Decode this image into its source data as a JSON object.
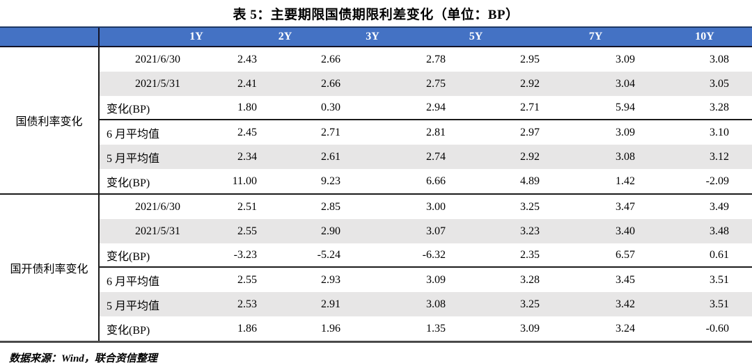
{
  "title": "表 5：主要期限国债期限利差变化（单位：BP）",
  "footer": "数据来源：Wind，联合资信整理",
  "colors": {
    "header_bg": "#4472C4",
    "header_text": "#FFFFFF",
    "stripe_row_bg": "#E7E6E6",
    "top_border": "#1F3864",
    "grid_line": "#1A1A1A",
    "bottom_border": "#4A4A4A"
  },
  "table": {
    "columns": [
      "1Y",
      "2Y",
      "3Y",
      "5Y",
      "7Y",
      "10Y"
    ],
    "groups": [
      {
        "label": "国债利率变化",
        "rows": [
          {
            "label": "2021/6/30",
            "values": [
              "2.43",
              "2.66",
              "2.78",
              "2.95",
              "3.09",
              "3.08"
            ]
          },
          {
            "label": "2021/5/31",
            "values": [
              "2.41",
              "2.66",
              "2.75",
              "2.92",
              "3.04",
              "3.05"
            ]
          },
          {
            "label": "变化(BP)",
            "values": [
              "1.80",
              "0.30",
              "2.94",
              "2.71",
              "5.94",
              "3.28"
            ]
          },
          {
            "label": "6 月平均值",
            "values": [
              "2.45",
              "2.71",
              "2.81",
              "2.97",
              "3.09",
              "3.10"
            ]
          },
          {
            "label": "5 月平均值",
            "values": [
              "2.34",
              "2.61",
              "2.74",
              "2.92",
              "3.08",
              "3.12"
            ]
          },
          {
            "label": "变化(BP)",
            "values": [
              "11.00",
              "9.23",
              "6.66",
              "4.89",
              "1.42",
              "-2.09"
            ]
          }
        ]
      },
      {
        "label": "国开债利率变化",
        "rows": [
          {
            "label": "2021/6/30",
            "values": [
              "2.51",
              "2.85",
              "3.00",
              "3.25",
              "3.47",
              "3.49"
            ]
          },
          {
            "label": "2021/5/31",
            "values": [
              "2.55",
              "2.90",
              "3.07",
              "3.23",
              "3.40",
              "3.48"
            ]
          },
          {
            "label": "变化(BP)",
            "values": [
              "-3.23",
              "-5.24",
              "-6.32",
              "2.35",
              "6.57",
              "0.61"
            ]
          },
          {
            "label": "6 月平均值",
            "values": [
              "2.55",
              "2.93",
              "3.09",
              "3.28",
              "3.45",
              "3.51"
            ]
          },
          {
            "label": "5 月平均值",
            "values": [
              "2.53",
              "2.91",
              "3.08",
              "3.25",
              "3.42",
              "3.51"
            ]
          },
          {
            "label": "变化(BP)",
            "values": [
              "1.86",
              "1.96",
              "1.35",
              "3.09",
              "3.24",
              "-0.60"
            ]
          }
        ]
      }
    ]
  }
}
